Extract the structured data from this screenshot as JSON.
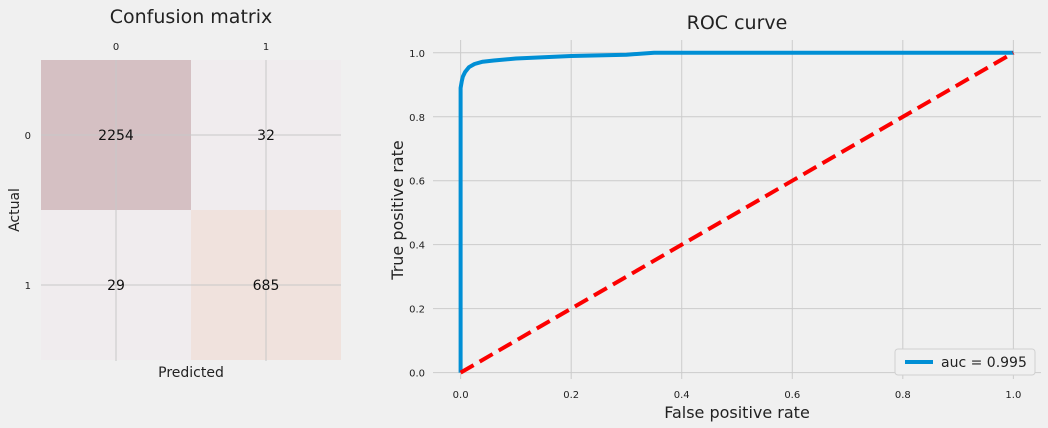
{
  "chart_data": [
    {
      "type": "heatmap",
      "title": "Confusion matrix",
      "xlabel": "Predicted",
      "ylabel": "Actual",
      "x_tick_labels": [
        "0",
        "1"
      ],
      "y_tick_labels": [
        "0",
        "1"
      ],
      "cells": [
        {
          "row": 0,
          "col": 0,
          "label": "2254",
          "value": 2254,
          "color": "#d5c0c3"
        },
        {
          "row": 0,
          "col": 1,
          "label": "32",
          "value": 32,
          "color": "#f0ecee"
        },
        {
          "row": 1,
          "col": 0,
          "label": "29",
          "value": 29,
          "color": "#f0ecee"
        },
        {
          "row": 1,
          "col": 1,
          "label": "685",
          "value": 685,
          "color": "#f0e2dd"
        }
      ],
      "grid": true
    },
    {
      "type": "line",
      "title": "ROC curve",
      "xlabel": "False positive rate",
      "ylabel": "True positive rate",
      "xlim": [
        -0.05,
        1.05
      ],
      "ylim": [
        -0.02,
        1.04
      ],
      "x_tick_labels": [
        "0.0",
        "0.2",
        "0.4",
        "0.6",
        "0.8",
        "1.0"
      ],
      "y_tick_labels": [
        "0.0",
        "0.2",
        "0.4",
        "0.6",
        "0.8",
        "1.0"
      ],
      "grid": true,
      "legend_position": "bottom-right",
      "series": [
        {
          "name": "auc = 0.995",
          "color": "#008fd5",
          "style": "solid",
          "points": [
            [
              0,
              0
            ],
            [
              0,
              0.89
            ],
            [
              0.002,
              0.91
            ],
            [
              0.004,
              0.925
            ],
            [
              0.008,
              0.94
            ],
            [
              0.015,
              0.955
            ],
            [
              0.025,
              0.965
            ],
            [
              0.04,
              0.972
            ],
            [
              0.06,
              0.976
            ],
            [
              0.1,
              0.982
            ],
            [
              0.15,
              0.986
            ],
            [
              0.2,
              0.99
            ],
            [
              0.3,
              0.994
            ],
            [
              0.35,
              1.0
            ],
            [
              1.0,
              1.0
            ]
          ]
        },
        {
          "name": "",
          "color": "#fc0000",
          "style": "dashed",
          "points": [
            [
              0,
              0
            ],
            [
              1,
              1
            ]
          ]
        }
      ]
    }
  ]
}
